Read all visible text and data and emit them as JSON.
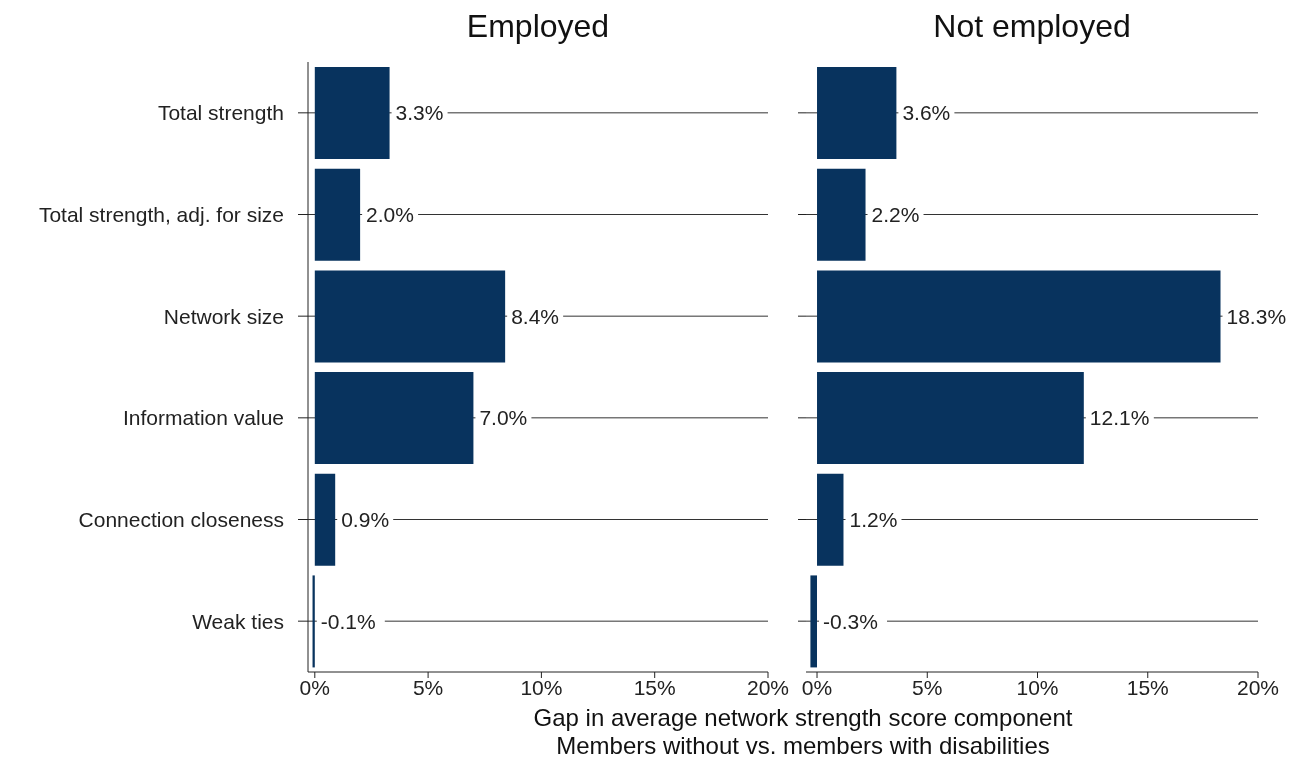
{
  "chart_data": [
    {
      "type": "bar",
      "orientation": "horizontal",
      "title": "Employed",
      "xlabel": "Gap in average network strength score component",
      "annotations": [
        "Members without vs. members with disabilities"
      ],
      "categories": [
        "Total strength",
        "Total strength, adj. for size",
        "Network size",
        "Information value",
        "Connection closeness",
        "Weak ties"
      ],
      "values": [
        3.3,
        2.0,
        8.4,
        7.0,
        0.9,
        -0.1
      ],
      "color": "#08335e",
      "value_labels": [
        "3.3%",
        "2.0%",
        "8.4%",
        "7.0%",
        "0.9%",
        "-0.1%"
      ],
      "xlim": [
        -0.3,
        20
      ],
      "xticks": [
        {
          "value": 0,
          "label": "0%"
        },
        {
          "value": 5,
          "label": "5%"
        },
        {
          "value": 10,
          "label": "10%"
        },
        {
          "value": 15,
          "label": "15%"
        },
        {
          "value": 20,
          "label": "20%"
        }
      ],
      "grid": "y"
    },
    {
      "type": "bar",
      "orientation": "horizontal",
      "title": "Not employed",
      "categories": [
        null,
        null,
        null,
        null,
        null,
        null
      ],
      "values": [
        3.6,
        2.2,
        18.3,
        12.1,
        1.2,
        -0.3
      ],
      "color": "#08335e",
      "value_labels": [
        "3.6%",
        "2.2%",
        "18.3%",
        "12.1%",
        "1.2%",
        "-0.3%"
      ],
      "xlim": [
        -0.5,
        20
      ],
      "xticks": [
        {
          "value": 0,
          "label": "0%"
        },
        {
          "value": 5,
          "label": "5%"
        },
        {
          "value": 10,
          "label": "10%"
        },
        {
          "value": 15,
          "label": "15%"
        },
        {
          "value": 20,
          "label": "20%"
        }
      ],
      "grid": "y",
      "tick_labels": "x"
    }
  ]
}
